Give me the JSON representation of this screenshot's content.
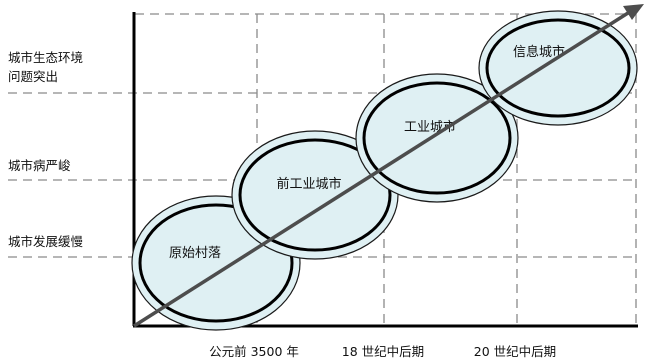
{
  "y_levels": [
    {
      "lines": [
        "城市生态环境",
        "问题突出"
      ]
    },
    {
      "lines": [
        "城市病严峻"
      ]
    },
    {
      "lines": [
        "城市发展缓慢"
      ]
    }
  ],
  "x_periods": [
    "公元前 3500 年",
    "18 世纪中后期",
    "20 世纪中后期"
  ],
  "stages": [
    "原始村落",
    "前工业城市",
    "工业城市",
    "信息城市"
  ],
  "colors": {
    "stage_fill": "#dff0f3",
    "stage_inner_stroke": "#000000",
    "trend_arrow": "#4d4d4d",
    "grid": "#8a8a8a"
  },
  "icons": {
    "trend": "diagonal-arrow-icon"
  }
}
